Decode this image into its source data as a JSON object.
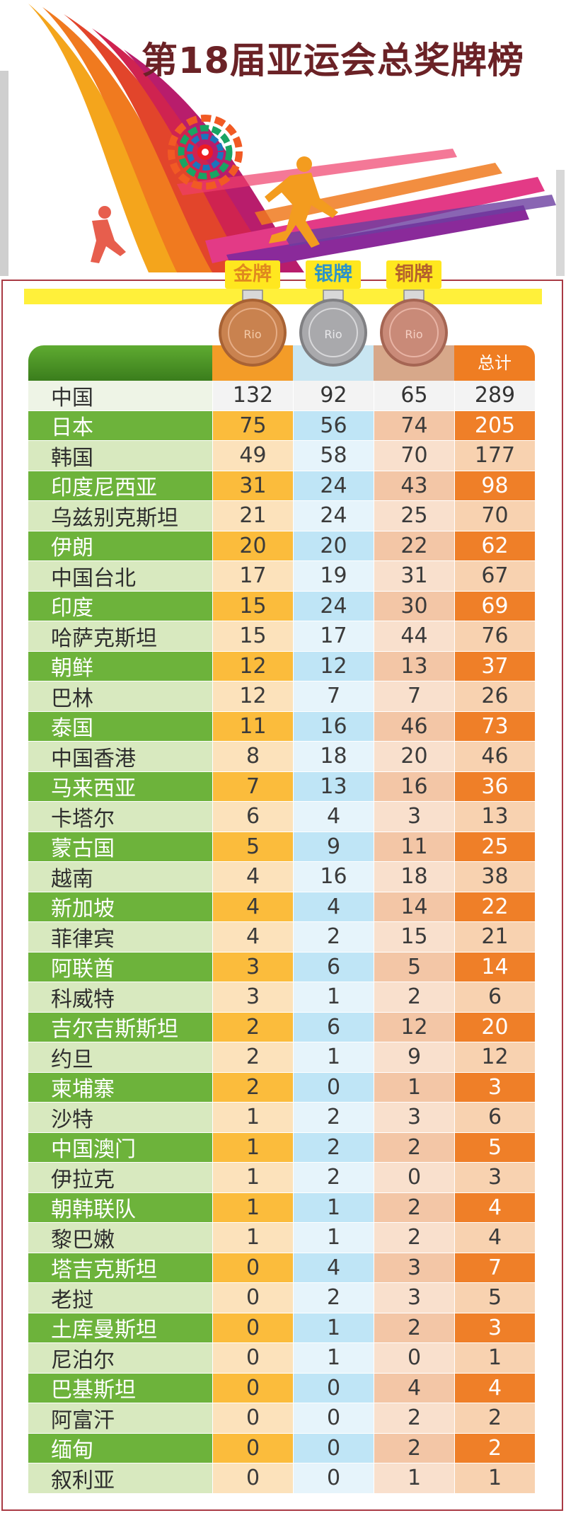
{
  "page": {
    "title": "第18届亚运会总奖牌榜",
    "medal_labels": {
      "gold": "金牌",
      "silver": "银牌",
      "bronze": "铜牌"
    },
    "total_header": "总计"
  },
  "colors": {
    "title": "#6b2226",
    "country_bar": "#6db33b",
    "gold": "#fbbc3c",
    "silver": "#bfe5f6",
    "bronze": "#f3c6a6",
    "total": "#ef7f28",
    "frame": "#a93a44"
  },
  "chart_data": {
    "type": "table",
    "title": "第18届亚运会总奖牌榜",
    "columns": [
      "",
      "金牌",
      "银牌",
      "铜牌",
      "总计"
    ],
    "rows": [
      {
        "country": "中国",
        "gold": 132,
        "silver": 92,
        "bronze": 65,
        "total": 289
      },
      {
        "country": "日本",
        "gold": 75,
        "silver": 56,
        "bronze": 74,
        "total": 205
      },
      {
        "country": "韩国",
        "gold": 49,
        "silver": 58,
        "bronze": 70,
        "total": 177
      },
      {
        "country": "印度尼西亚",
        "gold": 31,
        "silver": 24,
        "bronze": 43,
        "total": 98
      },
      {
        "country": "乌兹别克斯坦",
        "gold": 21,
        "silver": 24,
        "bronze": 25,
        "total": 70
      },
      {
        "country": "伊朗",
        "gold": 20,
        "silver": 20,
        "bronze": 22,
        "total": 62
      },
      {
        "country": "中国台北",
        "gold": 17,
        "silver": 19,
        "bronze": 31,
        "total": 67
      },
      {
        "country": "印度",
        "gold": 15,
        "silver": 24,
        "bronze": 30,
        "total": 69
      },
      {
        "country": "哈萨克斯坦",
        "gold": 15,
        "silver": 17,
        "bronze": 44,
        "total": 76
      },
      {
        "country": "朝鲜",
        "gold": 12,
        "silver": 12,
        "bronze": 13,
        "total": 37
      },
      {
        "country": "巴林",
        "gold": 12,
        "silver": 7,
        "bronze": 7,
        "total": 26
      },
      {
        "country": "泰国",
        "gold": 11,
        "silver": 16,
        "bronze": 46,
        "total": 73
      },
      {
        "country": "中国香港",
        "gold": 8,
        "silver": 18,
        "bronze": 20,
        "total": 46
      },
      {
        "country": "马来西亚",
        "gold": 7,
        "silver": 13,
        "bronze": 16,
        "total": 36
      },
      {
        "country": "卡塔尔",
        "gold": 6,
        "silver": 4,
        "bronze": 3,
        "total": 13
      },
      {
        "country": "蒙古国",
        "gold": 5,
        "silver": 9,
        "bronze": 11,
        "total": 25
      },
      {
        "country": "越南",
        "gold": 4,
        "silver": 16,
        "bronze": 18,
        "total": 38
      },
      {
        "country": "新加坡",
        "gold": 4,
        "silver": 4,
        "bronze": 14,
        "total": 22
      },
      {
        "country": "菲律宾",
        "gold": 4,
        "silver": 2,
        "bronze": 15,
        "total": 21
      },
      {
        "country": "阿联酋",
        "gold": 3,
        "silver": 6,
        "bronze": 5,
        "total": 14
      },
      {
        "country": "科威特",
        "gold": 3,
        "silver": 1,
        "bronze": 2,
        "total": 6
      },
      {
        "country": "吉尔吉斯斯坦",
        "gold": 2,
        "silver": 6,
        "bronze": 12,
        "total": 20
      },
      {
        "country": "约旦",
        "gold": 2,
        "silver": 1,
        "bronze": 9,
        "total": 12
      },
      {
        "country": "柬埔寨",
        "gold": 2,
        "silver": 0,
        "bronze": 1,
        "total": 3
      },
      {
        "country": "沙特",
        "gold": 1,
        "silver": 2,
        "bronze": 3,
        "total": 6
      },
      {
        "country": "中国澳门",
        "gold": 1,
        "silver": 2,
        "bronze": 2,
        "total": 5
      },
      {
        "country": "伊拉克",
        "gold": 1,
        "silver": 2,
        "bronze": 0,
        "total": 3
      },
      {
        "country": "朝韩联队",
        "gold": 1,
        "silver": 1,
        "bronze": 2,
        "total": 4
      },
      {
        "country": "黎巴嫩",
        "gold": 1,
        "silver": 1,
        "bronze": 2,
        "total": 4
      },
      {
        "country": "塔吉克斯坦",
        "gold": 0,
        "silver": 4,
        "bronze": 3,
        "total": 7
      },
      {
        "country": "老挝",
        "gold": 0,
        "silver": 2,
        "bronze": 3,
        "total": 5
      },
      {
        "country": "土库曼斯坦",
        "gold": 0,
        "silver": 1,
        "bronze": 2,
        "total": 3
      },
      {
        "country": "尼泊尔",
        "gold": 0,
        "silver": 1,
        "bronze": 0,
        "total": 1
      },
      {
        "country": "巴基斯坦",
        "gold": 0,
        "silver": 0,
        "bronze": 4,
        "total": 4
      },
      {
        "country": "阿富汗",
        "gold": 0,
        "silver": 0,
        "bronze": 2,
        "total": 2
      },
      {
        "country": "缅甸",
        "gold": 0,
        "silver": 0,
        "bronze": 2,
        "total": 2
      },
      {
        "country": "叙利亚",
        "gold": 0,
        "silver": 0,
        "bronze": 1,
        "total": 1
      }
    ]
  }
}
